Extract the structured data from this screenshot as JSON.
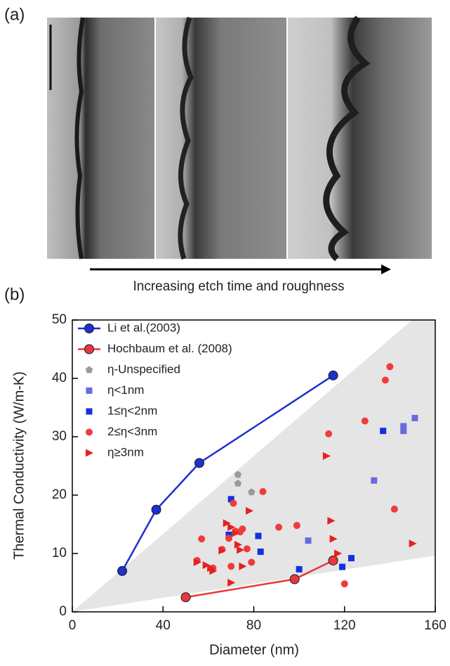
{
  "figure": {
    "panel_a_label": "(a)",
    "panel_b_label": "(b)",
    "arrow_caption": "Increasing etch time and roughness"
  },
  "chart_data": {
    "type": "scatter",
    "x_label": "Diameter (nm)",
    "y_label": "Thermal Conductivity (W/m-K)",
    "xlim": [
      0,
      160
    ],
    "ylim": [
      0,
      50
    ],
    "xticks": [
      0,
      40,
      80,
      120,
      160
    ],
    "yticks": [
      0,
      10,
      20,
      30,
      40,
      50
    ],
    "grid": false,
    "legend": "upper left",
    "series": [
      {
        "name": "Li et al.(2003)",
        "color": "#1f2fd0",
        "marker": "circle",
        "line": true,
        "x": [
          22,
          37,
          56,
          115
        ],
        "y": [
          7,
          17.5,
          25.5,
          40.5
        ]
      },
      {
        "name": "Hochbaum et al. (2008)",
        "color": "#e8383d",
        "marker": "circle",
        "line": true,
        "x": [
          50,
          98,
          115
        ],
        "y": [
          2.5,
          5.6,
          8.8
        ]
      },
      {
        "name": "η-Unspecified",
        "color": "#9a9a9a",
        "marker": "pentagon",
        "line": false,
        "x": [
          73,
          73,
          79
        ],
        "y": [
          23.5,
          22,
          20.5
        ]
      },
      {
        "name": "η<1nm",
        "color": "#6a6ae0",
        "marker": "square",
        "line": false,
        "x": [
          104,
          133,
          146,
          146,
          151
        ],
        "y": [
          12.2,
          22.5,
          31.8,
          31,
          33.2
        ]
      },
      {
        "name": "1≤η<2nm",
        "color": "#1530e0",
        "marker": "square",
        "line": false,
        "x": [
          70,
          69,
          82,
          83,
          100,
          119,
          123,
          137
        ],
        "y": [
          19.3,
          13.2,
          13,
          10.3,
          7.3,
          7.7,
          9.2,
          31
        ]
      },
      {
        "name": "2≤η<3nm",
        "color": "#ee3b3b",
        "marker": "circle",
        "line": false,
        "x": [
          55,
          57,
          62,
          66,
          69,
          70,
          71,
          72,
          74,
          75,
          77,
          79,
          84,
          91,
          99,
          113,
          120,
          129,
          138,
          140,
          142
        ],
        "y": [
          8.8,
          12.5,
          7.5,
          10.7,
          12.6,
          7.8,
          18.6,
          13.8,
          13.7,
          14.2,
          10.8,
          8.5,
          20.6,
          14.5,
          14.8,
          30.5,
          4.8,
          32.7,
          39.7,
          42,
          17.6
        ]
      },
      {
        "name": "η≥3nm",
        "color": "#e52020",
        "marker": "triangle-right",
        "line": false,
        "x": [
          55,
          59,
          61,
          62,
          66,
          68,
          70,
          72,
          73,
          70,
          75,
          78,
          74,
          112,
          114,
          115,
          117,
          150
        ],
        "y": [
          8.5,
          8,
          7.5,
          7,
          10.5,
          15.2,
          14.5,
          13.5,
          11.5,
          5,
          7.8,
          17.3,
          10.6,
          26.7,
          15.6,
          12.5,
          10,
          11.7
        ]
      }
    ]
  }
}
